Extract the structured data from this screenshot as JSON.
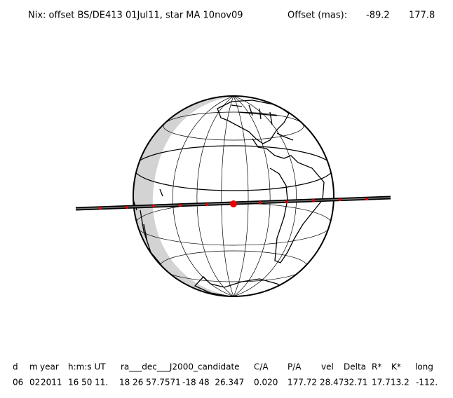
{
  "header": {
    "title": "Nix: offset BS/DE413 01Jul11, star MA 10nov09",
    "offset_label": "Offset (mas):",
    "offset_ra": "-89.2",
    "offset_dec": "177.8"
  },
  "table": {
    "headers": [
      "d",
      "m",
      "year",
      "h:m:s UT",
      "ra___dec___J2000_candidate",
      "C/A",
      "P/A",
      "vel",
      "Delta",
      "R*",
      "K*",
      "long"
    ],
    "rows": [
      [
        "06",
        "02",
        "2011",
        "16 50 11.",
        "18 26 57.7571",
        "-18 48  26.347",
        "0.020",
        "177.72",
        "28.47",
        "32.71",
        "17.7",
        "13.2",
        "-112."
      ]
    ]
  }
}
